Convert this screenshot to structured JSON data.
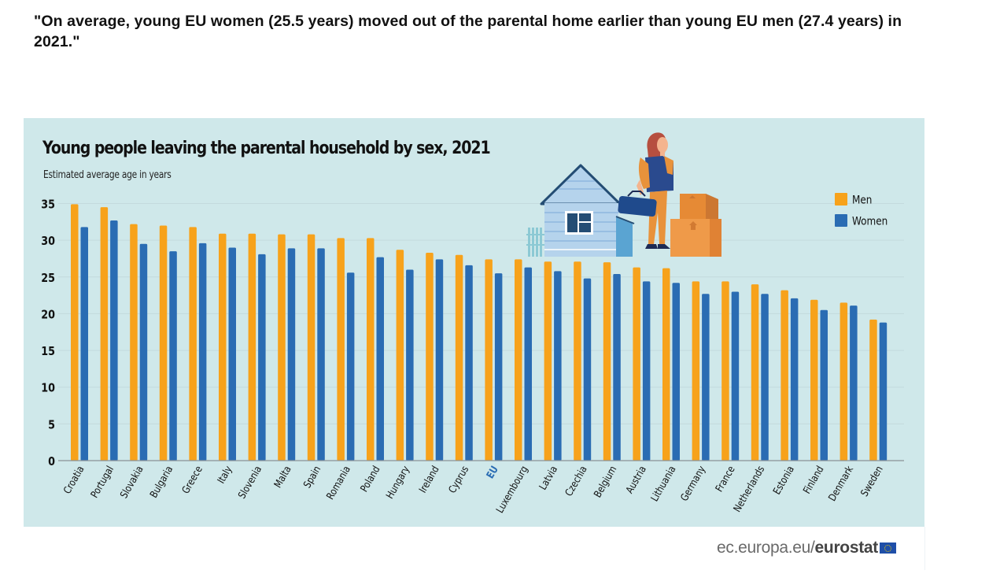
{
  "quote": "\"On average, young EU women (25.5 years) moved out of the parental home earlier than young EU men (27.4 years) in 2021.\"",
  "footer": {
    "source_prefix": "ec.europa.eu/",
    "source_brand": "eurostat",
    "flag_icon": "eu-flag-icon"
  },
  "colors": {
    "men": "#f7a21b",
    "women": "#2a6cb3",
    "panel_bg": "#cfe8ea",
    "eu_label": "#2a6cb3"
  },
  "chart_data": {
    "type": "bar",
    "title": "Young people leaving the parental household by sex, 2021",
    "subtitle": "Estimated average age in years",
    "xlabel": "",
    "ylabel": "Estimated average age in years",
    "ylim": [
      0,
      35
    ],
    "yticks": [
      0,
      5,
      10,
      15,
      20,
      25,
      30,
      35
    ],
    "grid": true,
    "legend": "right",
    "highlight_category": "EU",
    "categories": [
      "Croatia",
      "Portugal",
      "Slovakia",
      "Bulgaria",
      "Greece",
      "Italy",
      "Slovenia",
      "Malta",
      "Spain",
      "Romania",
      "Poland",
      "Hungary",
      "Ireland",
      "Cyprus",
      "EU",
      "Luxembourg",
      "Latvia",
      "Czechia",
      "Belgium",
      "Austria",
      "Lithuania",
      "Germany",
      "France",
      "Netherlands",
      "Estonia",
      "Finland",
      "Denmark",
      "Sweden"
    ],
    "series": [
      {
        "name": "Men",
        "color": "#f7a21b",
        "values": [
          34.9,
          34.5,
          32.2,
          32.0,
          31.8,
          30.9,
          30.9,
          30.8,
          30.8,
          30.3,
          30.3,
          28.7,
          28.3,
          28.0,
          27.4,
          27.4,
          27.1,
          27.1,
          27.0,
          26.3,
          26.2,
          24.4,
          24.4,
          24.0,
          23.2,
          21.9,
          21.5,
          19.2
        ]
      },
      {
        "name": "Women",
        "color": "#2a6cb3",
        "values": [
          31.8,
          32.7,
          29.5,
          28.5,
          29.6,
          29.0,
          28.1,
          28.9,
          28.9,
          25.6,
          27.7,
          26.0,
          27.4,
          26.6,
          25.5,
          26.3,
          25.8,
          24.8,
          25.4,
          24.4,
          24.2,
          22.7,
          23.0,
          22.7,
          22.1,
          20.5,
          21.1,
          18.8
        ]
      }
    ]
  }
}
